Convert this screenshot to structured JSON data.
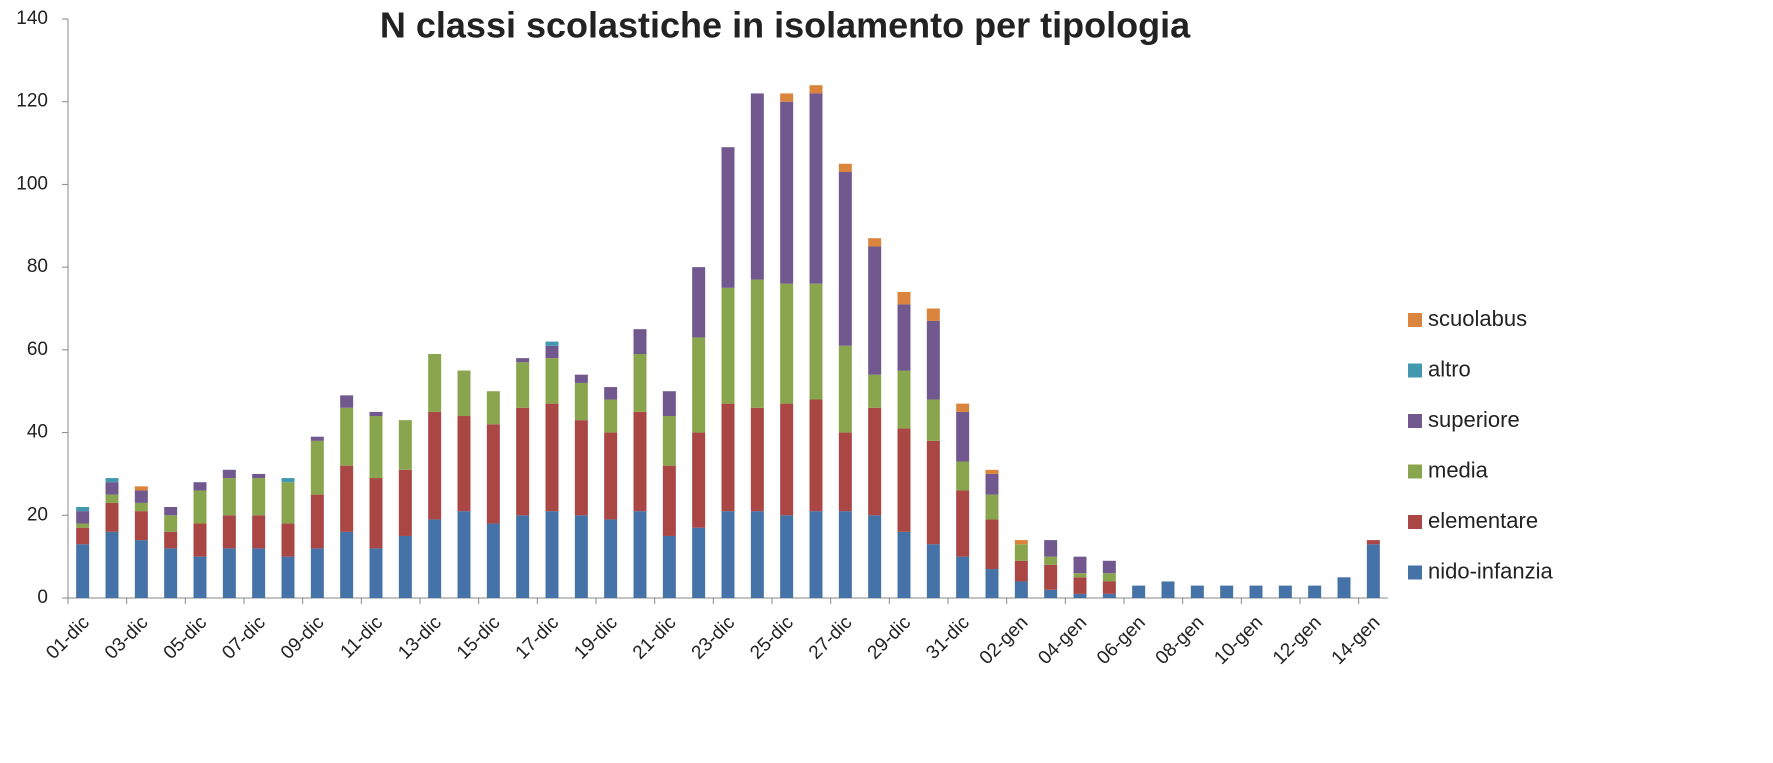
{
  "chart_data": {
    "type": "stacked_bar",
    "title": "N classi scolastiche in isolamento per tipologia",
    "categories": [
      "01-dic",
      null,
      "03-dic",
      null,
      "05-dic",
      null,
      "07-dic",
      null,
      "09-dic",
      null,
      "11-dic",
      null,
      "13-dic",
      null,
      "15-dic",
      null,
      "17-dic",
      null,
      "19-dic",
      null,
      "21-dic",
      null,
      "23-dic",
      null,
      "25-dic",
      null,
      "27-dic",
      null,
      "29-dic",
      null,
      "31-dic",
      null,
      "02-gen",
      null,
      "04-gen",
      null,
      "06-gen",
      null,
      "08-gen",
      null,
      "10-gen",
      null,
      "12-gen",
      null,
      "14-gen"
    ],
    "series": [
      {
        "name": "nido-infanzia",
        "color": "#4572a7",
        "values": [
          13,
          16,
          14,
          12,
          10,
          12,
          12,
          10,
          12,
          16,
          12,
          15,
          19,
          21,
          18,
          20,
          21,
          20,
          19,
          21,
          15,
          17,
          21,
          21,
          20,
          21,
          21,
          20,
          16,
          13,
          10,
          7,
          4,
          2,
          1,
          1,
          3,
          4,
          3,
          3,
          3,
          3,
          3,
          5,
          13
        ]
      },
      {
        "name": "elementare",
        "color": "#aa4643",
        "values": [
          4,
          7,
          7,
          4,
          8,
          8,
          8,
          8,
          13,
          16,
          17,
          16,
          26,
          23,
          24,
          26,
          26,
          23,
          21,
          24,
          17,
          23,
          26,
          25,
          27,
          27,
          19,
          26,
          25,
          25,
          16,
          12,
          5,
          6,
          4,
          3,
          0,
          0,
          0,
          0,
          0,
          0,
          0,
          0,
          1
        ]
      },
      {
        "name": "media",
        "color": "#89a54e",
        "values": [
          1,
          2,
          2,
          4,
          8,
          9,
          9,
          10,
          13,
          14,
          15,
          12,
          14,
          11,
          8,
          11,
          11,
          9,
          8,
          14,
          12,
          23,
          28,
          31,
          29,
          28,
          21,
          8,
          14,
          10,
          7,
          6,
          4,
          2,
          1,
          2,
          0,
          0,
          0,
          0,
          0,
          0,
          0,
          0,
          0
        ]
      },
      {
        "name": "superiore",
        "color": "#71588f",
        "values": [
          3,
          3,
          3,
          2,
          2,
          2,
          1,
          0,
          1,
          3,
          1,
          0,
          0,
          0,
          0,
          1,
          3,
          2,
          3,
          6,
          6,
          17,
          34,
          45,
          44,
          46,
          42,
          31,
          16,
          19,
          12,
          5,
          0,
          4,
          4,
          3,
          0,
          0,
          0,
          0,
          0,
          0,
          0,
          0,
          0
        ]
      },
      {
        "name": "altro",
        "color": "#4198af",
        "values": [
          1,
          1,
          0,
          0,
          0,
          0,
          0,
          1,
          0,
          0,
          0,
          0,
          0,
          0,
          0,
          0,
          1,
          0,
          0,
          0,
          0,
          0,
          0,
          0,
          0,
          0,
          0,
          0,
          0,
          0,
          0,
          0,
          0,
          0,
          0,
          0,
          0,
          0,
          0,
          0,
          0,
          0,
          0,
          0,
          0
        ]
      },
      {
        "name": "scuolabus",
        "color": "#db843d",
        "values": [
          0,
          0,
          1,
          0,
          0,
          0,
          0,
          0,
          0,
          0,
          0,
          0,
          0,
          0,
          0,
          0,
          0,
          0,
          0,
          0,
          0,
          0,
          0,
          0,
          2,
          2,
          2,
          2,
          3,
          3,
          2,
          1,
          1,
          0,
          0,
          0,
          0,
          0,
          0,
          0,
          0,
          0,
          0,
          0,
          0
        ]
      }
    ],
    "ylim": [
      0,
      140
    ],
    "yticks": [
      0,
      20,
      40,
      60,
      80,
      100,
      120,
      140
    ],
    "grid": false,
    "legend": "right"
  }
}
